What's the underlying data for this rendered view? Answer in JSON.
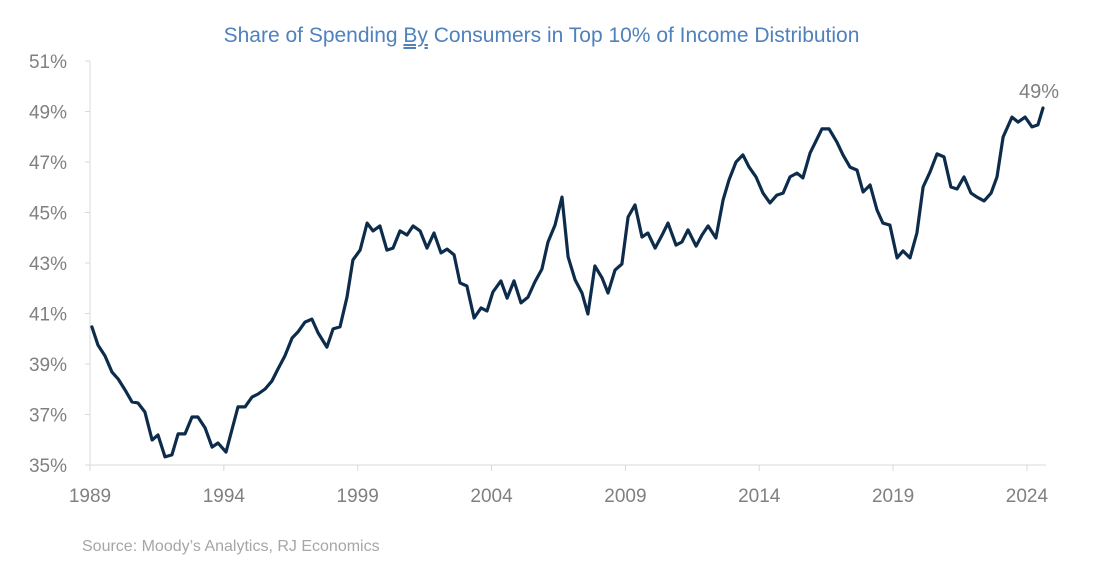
{
  "chart_data": {
    "type": "line",
    "title_parts": [
      "Share of Spending ",
      "By",
      " Consumers in Top 10% of Income Distribution"
    ],
    "xlabel": "",
    "ylabel": "",
    "x_ticks": [
      "1989",
      "1994",
      "1999",
      "2004",
      "2009",
      "2014",
      "2019",
      "2024"
    ],
    "y_ticks": [
      "35%",
      "37%",
      "39%",
      "41%",
      "43%",
      "45%",
      "47%",
      "49%",
      "51%"
    ],
    "xlim": [
      1989,
      2025.3
    ],
    "ylim": [
      35,
      51
    ],
    "grid": false,
    "line_color": "#0d2c4c",
    "end_label": "49%",
    "source": "Source: Moody’s Analytics, RJ Economics",
    "series": [
      {
        "points": [
          [
            1989.07,
            40.47
          ],
          [
            1989.3,
            39.75
          ],
          [
            1989.56,
            39.32
          ],
          [
            1989.82,
            38.68
          ],
          [
            1990.05,
            38.41
          ],
          [
            1990.31,
            37.97
          ],
          [
            1990.57,
            37.5
          ],
          [
            1990.79,
            37.46
          ],
          [
            1991.05,
            37.1
          ],
          [
            1991.32,
            35.99
          ],
          [
            1991.54,
            36.19
          ],
          [
            1991.8,
            35.32
          ],
          [
            1992.06,
            35.4
          ],
          [
            1992.29,
            36.23
          ],
          [
            1992.55,
            36.23
          ],
          [
            1992.81,
            36.9
          ],
          [
            1993.03,
            36.9
          ],
          [
            1993.3,
            36.47
          ],
          [
            1993.56,
            35.71
          ],
          [
            1993.78,
            35.87
          ],
          [
            1994.08,
            35.51
          ],
          [
            1994.3,
            36.39
          ],
          [
            1994.53,
            37.3
          ],
          [
            1994.79,
            37.3
          ],
          [
            1995.05,
            37.69
          ],
          [
            1995.28,
            37.81
          ],
          [
            1995.54,
            38.01
          ],
          [
            1995.8,
            38.33
          ],
          [
            1996.02,
            38.8
          ],
          [
            1996.28,
            39.32
          ],
          [
            1996.55,
            40.03
          ],
          [
            1996.77,
            40.27
          ],
          [
            1997.03,
            40.66
          ],
          [
            1997.29,
            40.78
          ],
          [
            1997.52,
            40.23
          ],
          [
            1997.85,
            39.67
          ],
          [
            1998.08,
            40.39
          ],
          [
            1998.34,
            40.47
          ],
          [
            1998.6,
            41.65
          ],
          [
            1998.82,
            43.12
          ],
          [
            1999.09,
            43.51
          ],
          [
            1999.35,
            44.58
          ],
          [
            1999.57,
            44.27
          ],
          [
            1999.83,
            44.47
          ],
          [
            2000.09,
            43.51
          ],
          [
            2000.32,
            43.59
          ],
          [
            2000.58,
            44.27
          ],
          [
            2000.84,
            44.11
          ],
          [
            2001.07,
            44.47
          ],
          [
            2001.33,
            44.27
          ],
          [
            2001.59,
            43.59
          ],
          [
            2001.85,
            44.19
          ],
          [
            2002.11,
            43.4
          ],
          [
            2002.34,
            43.55
          ],
          [
            2002.6,
            43.32
          ],
          [
            2002.82,
            42.21
          ],
          [
            2003.08,
            42.09
          ],
          [
            2003.35,
            40.82
          ],
          [
            2003.61,
            41.22
          ],
          [
            2003.83,
            41.1
          ],
          [
            2004.05,
            41.85
          ],
          [
            2004.35,
            42.29
          ],
          [
            2004.58,
            41.61
          ],
          [
            2004.84,
            42.29
          ],
          [
            2005.1,
            41.42
          ],
          [
            2005.36,
            41.65
          ],
          [
            2005.62,
            42.25
          ],
          [
            2005.88,
            42.76
          ],
          [
            2006.11,
            43.83
          ],
          [
            2006.37,
            44.5
          ],
          [
            2006.63,
            45.61
          ],
          [
            2006.86,
            43.24
          ],
          [
            2007.12,
            42.33
          ],
          [
            2007.38,
            41.81
          ],
          [
            2007.6,
            40.98
          ],
          [
            2007.86,
            42.88
          ],
          [
            2008.13,
            42.41
          ],
          [
            2008.35,
            41.81
          ],
          [
            2008.61,
            42.72
          ],
          [
            2008.87,
            42.96
          ],
          [
            2009.1,
            44.82
          ],
          [
            2009.36,
            45.3
          ],
          [
            2009.62,
            44.03
          ],
          [
            2009.84,
            44.19
          ],
          [
            2010.11,
            43.59
          ],
          [
            2010.37,
            44.11
          ],
          [
            2010.59,
            44.58
          ],
          [
            2010.89,
            43.71
          ],
          [
            2011.11,
            43.83
          ],
          [
            2011.34,
            44.31
          ],
          [
            2011.64,
            43.67
          ],
          [
            2011.86,
            44.11
          ],
          [
            2012.09,
            44.47
          ],
          [
            2012.38,
            43.99
          ],
          [
            2012.65,
            45.5
          ],
          [
            2012.87,
            46.29
          ],
          [
            2013.13,
            47.0
          ],
          [
            2013.39,
            47.28
          ],
          [
            2013.62,
            46.8
          ],
          [
            2013.88,
            46.41
          ],
          [
            2014.14,
            45.77
          ],
          [
            2014.4,
            45.38
          ],
          [
            2014.66,
            45.69
          ],
          [
            2014.89,
            45.77
          ],
          [
            2015.15,
            46.41
          ],
          [
            2015.41,
            46.56
          ],
          [
            2015.63,
            46.37
          ],
          [
            2015.9,
            47.36
          ],
          [
            2016.12,
            47.83
          ],
          [
            2016.34,
            48.31
          ],
          [
            2016.61,
            48.31
          ],
          [
            2016.9,
            47.79
          ],
          [
            2017.13,
            47.28
          ],
          [
            2017.39,
            46.8
          ],
          [
            2017.65,
            46.68
          ],
          [
            2017.88,
            45.81
          ],
          [
            2018.14,
            46.09
          ],
          [
            2018.4,
            45.1
          ],
          [
            2018.62,
            44.58
          ],
          [
            2018.88,
            44.5
          ],
          [
            2019.15,
            43.2
          ],
          [
            2019.37,
            43.48
          ],
          [
            2019.63,
            43.2
          ],
          [
            2019.89,
            44.19
          ],
          [
            2020.12,
            46.01
          ],
          [
            2020.38,
            46.6
          ],
          [
            2020.64,
            47.32
          ],
          [
            2020.9,
            47.2
          ],
          [
            2021.16,
            46.01
          ],
          [
            2021.39,
            45.93
          ],
          [
            2021.65,
            46.41
          ],
          [
            2021.91,
            45.77
          ],
          [
            2022.13,
            45.61
          ],
          [
            2022.4,
            45.46
          ],
          [
            2022.66,
            45.77
          ],
          [
            2022.88,
            46.41
          ],
          [
            2023.11,
            47.99
          ],
          [
            2023.44,
            48.78
          ],
          [
            2023.67,
            48.58
          ],
          [
            2023.93,
            48.78
          ],
          [
            2024.19,
            48.39
          ],
          [
            2024.41,
            48.47
          ],
          [
            2024.6,
            49.14
          ]
        ]
      }
    ]
  }
}
